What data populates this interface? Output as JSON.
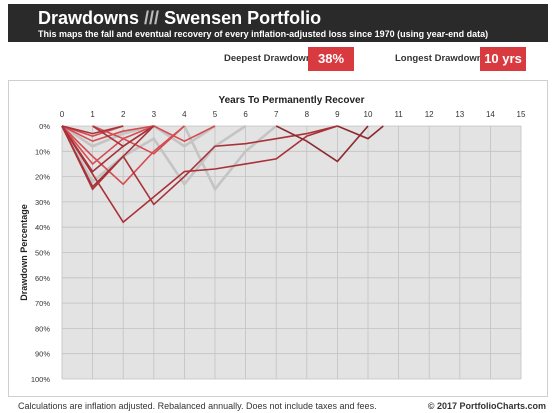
{
  "header": {
    "title_main": "Drawdowns",
    "title_sep": "///",
    "title_portfolio": "Swensen Portfolio",
    "subtitle": "This maps the fall and eventual recovery of every inflation-adjusted loss since 1970 (using year-end data)"
  },
  "stats": {
    "deepest_label": "Deepest Drawdown",
    "deepest_value": "38%",
    "longest_label": "Longest Drawdown",
    "longest_value": "10 yrs"
  },
  "colors": {
    "header_bg": "#2a2a2a",
    "accent": "#d83a3f",
    "plot_bg": "#e3e3e3",
    "grid": "#c2c2c2"
  },
  "chart_data": {
    "type": "line",
    "title": "Years To Permanently Recover",
    "xlabel": "Years To Permanently Recover",
    "ylabel": "Drawdown Percentage",
    "x_ticks": [
      "0",
      "1",
      "2",
      "3",
      "4",
      "5",
      "6",
      "7",
      "8",
      "9",
      "10",
      "11",
      "12",
      "13",
      "14",
      "15"
    ],
    "y_ticks": [
      "0%",
      "10%",
      "20%",
      "30%",
      "40%",
      "50%",
      "60%",
      "70%",
      "80%",
      "90%",
      "100%"
    ],
    "xlim": [
      0,
      15
    ],
    "ylim": [
      0,
      100
    ],
    "x_axis_position": "top",
    "grid": true,
    "series": [
      {
        "color": "#c4c4c4",
        "width": 2.6,
        "points": [
          [
            0,
            0
          ],
          [
            1,
            22
          ],
          [
            2,
            12
          ],
          [
            3,
            5
          ],
          [
            4,
            23
          ],
          [
            5,
            8
          ],
          [
            6,
            0
          ]
        ]
      },
      {
        "color": "#c4c4c4",
        "width": 2.6,
        "points": [
          [
            0,
            0
          ],
          [
            1,
            8
          ],
          [
            2,
            3
          ],
          [
            3,
            0
          ]
        ]
      },
      {
        "color": "#c4c4c4",
        "width": 2.6,
        "points": [
          [
            4,
            0
          ],
          [
            5,
            25
          ],
          [
            6,
            10
          ],
          [
            7,
            0
          ]
        ]
      },
      {
        "color": "#c4c4c4",
        "width": 2.6,
        "points": [
          [
            3,
            0
          ],
          [
            4,
            8
          ],
          [
            5,
            0
          ]
        ]
      },
      {
        "color": "#d54c52",
        "width": 1.6,
        "points": [
          [
            0,
            0
          ],
          [
            1,
            4
          ],
          [
            2,
            0
          ]
        ]
      },
      {
        "color": "#d54c52",
        "width": 1.6,
        "points": [
          [
            0,
            0
          ],
          [
            1,
            6
          ],
          [
            2,
            2
          ],
          [
            3,
            0
          ]
        ]
      },
      {
        "color": "#d54c52",
        "width": 1.6,
        "points": [
          [
            0,
            0
          ],
          [
            1,
            12
          ],
          [
            2,
            23
          ],
          [
            3,
            10
          ],
          [
            4,
            0
          ]
        ]
      },
      {
        "color": "#d54c52",
        "width": 1.6,
        "points": [
          [
            0,
            0
          ],
          [
            1,
            15
          ],
          [
            2,
            5
          ],
          [
            3,
            11
          ],
          [
            4,
            0
          ]
        ]
      },
      {
        "color": "#d54c52",
        "width": 1.6,
        "points": [
          [
            1,
            0
          ],
          [
            2,
            5
          ],
          [
            3,
            0
          ]
        ]
      },
      {
        "color": "#d54c52",
        "width": 1.6,
        "points": [
          [
            3,
            0
          ],
          [
            4,
            6
          ],
          [
            5,
            0
          ]
        ]
      },
      {
        "color": "#a83238",
        "width": 1.6,
        "points": [
          [
            0,
            0
          ],
          [
            1,
            3
          ],
          [
            2,
            0
          ]
        ]
      },
      {
        "color": "#a83238",
        "width": 1.6,
        "points": [
          [
            0,
            0
          ],
          [
            1,
            24
          ],
          [
            2,
            12
          ],
          [
            3,
            0
          ]
        ]
      },
      {
        "color": "#a83238",
        "width": 1.6,
        "points": [
          [
            0,
            0
          ],
          [
            1,
            18
          ],
          [
            2,
            8
          ],
          [
            3,
            0
          ]
        ]
      },
      {
        "color": "#a83238",
        "width": 1.6,
        "points": [
          [
            0,
            0
          ],
          [
            2,
            38
          ],
          [
            3,
            28
          ],
          [
            4,
            18
          ],
          [
            5,
            17
          ],
          [
            6,
            15
          ],
          [
            7,
            13
          ],
          [
            8,
            4
          ],
          [
            9,
            0
          ]
        ]
      },
      {
        "color": "#a83238",
        "width": 1.6,
        "points": [
          [
            0,
            0
          ],
          [
            1,
            25
          ],
          [
            2,
            12
          ],
          [
            3,
            31
          ],
          [
            4,
            20
          ],
          [
            5,
            8
          ],
          [
            6,
            7
          ],
          [
            7,
            5
          ],
          [
            8,
            3
          ],
          [
            9,
            0
          ]
        ]
      },
      {
        "color": "#a83238",
        "width": 1.6,
        "points": [
          [
            1,
            0
          ],
          [
            2,
            8
          ],
          [
            3,
            0
          ]
        ]
      },
      {
        "color": "#8c2a2f",
        "width": 1.6,
        "points": [
          [
            7,
            0
          ],
          [
            8,
            6
          ],
          [
            9,
            14
          ],
          [
            10,
            0
          ]
        ]
      },
      {
        "color": "#8c2a2f",
        "width": 1.6,
        "points": [
          [
            9,
            0
          ],
          [
            10,
            5
          ],
          [
            10.5,
            0
          ]
        ]
      }
    ]
  },
  "footer": {
    "note": "Calculations are inflation adjusted.  Rebalanced annually.  Does not include taxes and fees.",
    "copyright": "© 2017 PortfolioCharts.com"
  }
}
